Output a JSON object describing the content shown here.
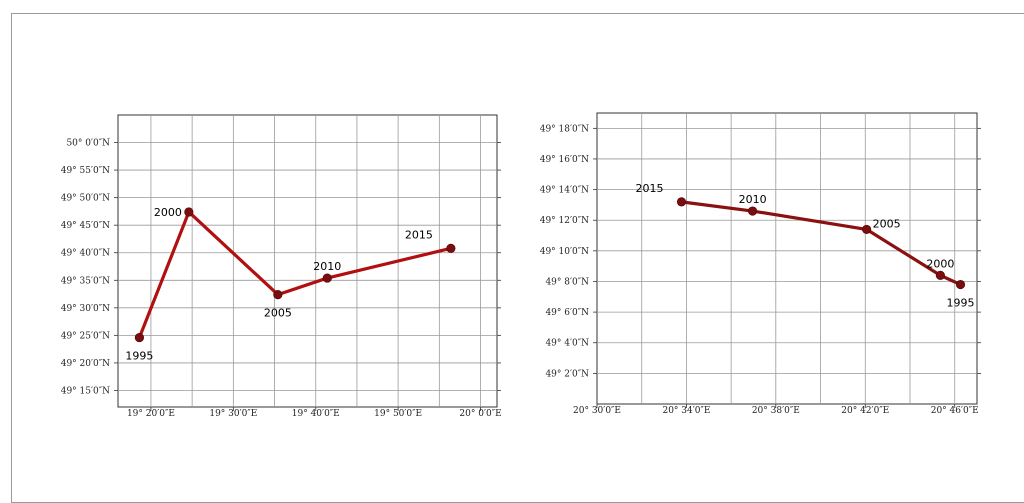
{
  "chart_data": [
    {
      "type": "line",
      "grid": true,
      "xlim": [
        19.2667,
        20.0333
      ],
      "ylim": [
        49.2,
        50.0833
      ],
      "x_ticks": [
        {
          "value": 19.3333,
          "label": "19° 20′0″E"
        },
        {
          "value": 19.5,
          "label": "19° 30′0″E"
        },
        {
          "value": 19.6667,
          "label": "19° 40′0″E"
        },
        {
          "value": 19.8333,
          "label": "19° 50′0″E"
        },
        {
          "value": 20.0,
          "label": "20° 0′0″E"
        }
      ],
      "y_ticks": [
        {
          "value": 50.0,
          "label": "50° 0′0″N"
        },
        {
          "value": 49.9167,
          "label": "49° 55′0″N"
        },
        {
          "value": 49.8333,
          "label": "49° 50′0″N"
        },
        {
          "value": 49.75,
          "label": "49° 45′0″N"
        },
        {
          "value": 49.6667,
          "label": "49° 40′0″N"
        },
        {
          "value": 49.5833,
          "label": "49° 35′0″N"
        },
        {
          "value": 49.5,
          "label": "49° 30′0″N"
        },
        {
          "value": 49.4167,
          "label": "49° 25′0″N"
        },
        {
          "value": 49.3333,
          "label": "49° 20′0″N"
        },
        {
          "value": 49.25,
          "label": "49° 15′0″N"
        }
      ],
      "line_color": "#b01010",
      "marker_color": "#7a0d0d",
      "points": [
        {
          "label": "1995",
          "x": 19.31,
          "y": 49.41,
          "label_pos": "below"
        },
        {
          "label": "2000",
          "x": 19.41,
          "y": 49.79,
          "label_pos": "left"
        },
        {
          "label": "2005",
          "x": 19.59,
          "y": 49.54,
          "label_pos": "below"
        },
        {
          "label": "2010",
          "x": 19.69,
          "y": 49.59,
          "label_pos": "above"
        },
        {
          "label": "2015",
          "x": 19.94,
          "y": 49.68,
          "label_pos": "above-left"
        }
      ]
    },
    {
      "type": "line",
      "grid": true,
      "xlim": [
        20.5,
        20.7833
      ],
      "ylim": [
        49.0,
        49.3167
      ],
      "x_ticks": [
        {
          "value": 20.5,
          "label": "20° 30′0″E"
        },
        {
          "value": 20.5667,
          "label": "20° 34′0″E"
        },
        {
          "value": 20.6333,
          "label": "20° 38′0″E"
        },
        {
          "value": 20.7,
          "label": "20° 42′0″E"
        },
        {
          "value": 20.7667,
          "label": "20° 46′0″E"
        }
      ],
      "y_ticks": [
        {
          "value": 49.3,
          "label": "49° 18′0″N"
        },
        {
          "value": 49.2667,
          "label": "49° 16′0″N"
        },
        {
          "value": 49.2333,
          "label": "49° 14′0″N"
        },
        {
          "value": 49.2,
          "label": "49° 12′0″N"
        },
        {
          "value": 49.1667,
          "label": "49° 10′0″N"
        },
        {
          "value": 49.1333,
          "label": "49° 8′0″N"
        },
        {
          "value": 49.1,
          "label": "49° 6′0″N"
        },
        {
          "value": 49.0667,
          "label": "49° 4′0″N"
        },
        {
          "value": 49.0333,
          "label": "49° 2′0″N"
        }
      ],
      "line_color": "#8b1010",
      "marker_color": "#7a0d0d",
      "points": [
        {
          "label": "1995",
          "x": 20.771,
          "y": 49.13,
          "label_pos": "below"
        },
        {
          "label": "2000",
          "x": 20.756,
          "y": 49.14,
          "label_pos": "above"
        },
        {
          "label": "2005",
          "x": 20.701,
          "y": 49.19,
          "label_pos": "right"
        },
        {
          "label": "2010",
          "x": 20.616,
          "y": 49.21,
          "label_pos": "above"
        },
        {
          "label": "2015",
          "x": 20.563,
          "y": 49.22,
          "label_pos": "above-left"
        }
      ]
    }
  ]
}
